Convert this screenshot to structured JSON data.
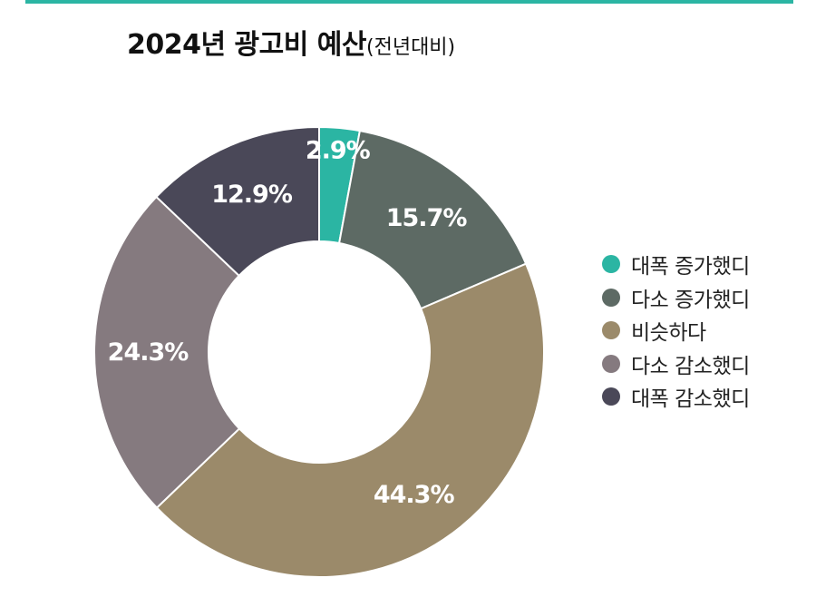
{
  "chart_data": {
    "type": "pie",
    "title": "2024년 광고비 예산",
    "subtitle": "(전년대비)",
    "donut": true,
    "legend_position": "right",
    "slices": [
      {
        "label": "대폭 증가했디",
        "value": 2.9,
        "display": "2.9%",
        "color": "#2bb5a3"
      },
      {
        "label": "다소 증가했디",
        "value": 15.7,
        "display": "15.7%",
        "color": "#5d6a64"
      },
      {
        "label": "비슷하다",
        "value": 44.3,
        "display": "44.3%",
        "color": "#9b8a6a"
      },
      {
        "label": "다소 감소했디",
        "value": 24.3,
        "display": "24.3%",
        "color": "#857a7f"
      },
      {
        "label": "대폭 감소했디",
        "value": 12.9,
        "display": "12.9%",
        "color": "#4a4858"
      }
    ]
  }
}
